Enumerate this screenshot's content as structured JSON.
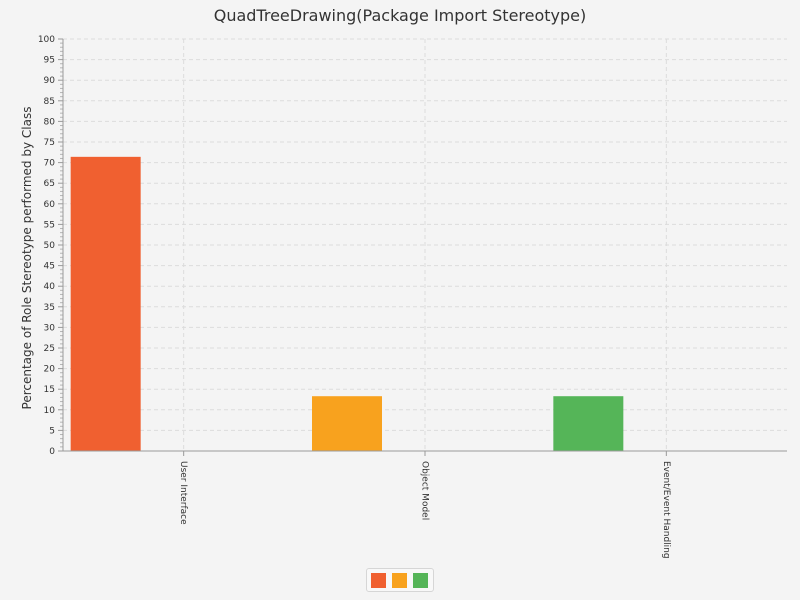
{
  "chart_data": {
    "type": "bar",
    "title": "QuadTreeDrawing(Package Import Stereotype)",
    "xlabel": "",
    "ylabel": "Percentage of Role Stereotype performed by Class",
    "categories": [
      "User Interface",
      "Object Model",
      "Event/Event Handling"
    ],
    "values": [
      71.4,
      13.3,
      13.3
    ],
    "colors": [
      "#f06030",
      "#f8a21e",
      "#55b558"
    ],
    "ylim": [
      0,
      100
    ],
    "yticks": [
      "0",
      "5",
      "10",
      "15",
      "20",
      "25",
      "30",
      "35",
      "40",
      "45",
      "50",
      "55",
      "60",
      "65",
      "70",
      "75",
      "80",
      "85",
      "90",
      "95",
      "100"
    ],
    "grid": true,
    "legend_position": "bottom"
  }
}
